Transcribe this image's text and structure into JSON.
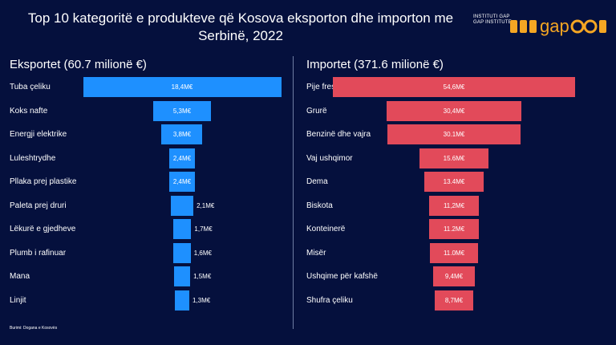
{
  "header": {
    "title_line1": "Top 10 kategoritë e produkteve që Kosova eksporton dhe importon me",
    "title_line2": "Serbinë, 2022"
  },
  "logo": {
    "line1": "INSTITUTI GAP",
    "line2": "GAP INSTITUTE",
    "wordmark": "gap",
    "accent_color": "#f5a623"
  },
  "source": "Burimi: Dogana e Kosovës",
  "chart_data": [
    {
      "type": "bar",
      "orientation": "horizontal",
      "title": "Eksportet (60.7 milionë €)",
      "color": "#1e90ff",
      "categories": [
        "Tuba çeliku",
        "Koks nafte",
        "Energji elektrike",
        "Luleshtrydhe",
        "Pllaka prej plastike",
        "Paleta prej druri",
        "Lëkurë e gjedheve",
        "Plumb i rafinuar",
        "Mana",
        "Linjit"
      ],
      "values": [
        18.4,
        5.3,
        3.8,
        2.4,
        2.4,
        2.1,
        1.7,
        1.6,
        1.5,
        1.3
      ],
      "labels": [
        "18,4M€",
        "5,3M€",
        "3,8M€",
        "2,4M€",
        "2,4M€",
        "2,1M€",
        "1,7M€",
        "1,6M€",
        "1,5M€",
        "1,3M€"
      ]
    },
    {
      "type": "bar",
      "orientation": "horizontal",
      "title": "Importet (371.6 milionë €)",
      "color": "#e24a5a",
      "categories": [
        "Pije freskuese",
        "Grurë",
        "Benzinë dhe vajra",
        "Vaj ushqimor",
        "Dema",
        "Biskota",
        "Konteinerë",
        "Misër",
        "Ushqime për kafshë",
        "Shufra çeliku"
      ],
      "values": [
        54.6,
        30.4,
        30.1,
        15.6,
        13.4,
        11.2,
        11.2,
        11.0,
        9.4,
        8.7
      ],
      "labels": [
        "54,6M€",
        "30,4M€",
        "30.1M€",
        "15.6M€",
        "13.4M€",
        "11,2M€",
        "11.2M€",
        "11.0M€",
        "9,4M€",
        "8,7M€"
      ]
    }
  ]
}
